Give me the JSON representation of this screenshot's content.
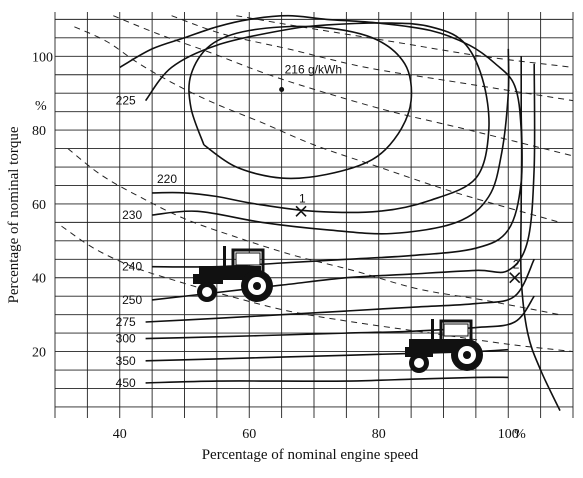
{
  "chart_data": {
    "type": "line",
    "title": "",
    "xlabel": "Percentage of nominal engine speed",
    "ylabel": "Percentage of nominal torque",
    "x_unit": "%",
    "y_unit": "%",
    "xlim": [
      30,
      110
    ],
    "ylim": [
      2,
      112
    ],
    "x_ticks": [
      40,
      60,
      80,
      100
    ],
    "y_ticks": [
      20,
      40,
      60,
      80,
      100
    ],
    "grid": true,
    "center_label": "216 g/kWh",
    "center_point": [
      65,
      91
    ],
    "isolines": [
      {
        "label": "220",
        "points": [
          [
            53,
            76
          ],
          [
            58,
            70
          ],
          [
            65,
            67
          ],
          [
            72,
            68
          ],
          [
            79,
            72
          ],
          [
            83,
            79
          ],
          [
            85,
            88
          ],
          [
            84,
            98
          ],
          [
            79,
            105
          ],
          [
            70,
            108
          ],
          [
            60,
            107
          ],
          [
            54,
            103
          ],
          [
            51,
            95
          ],
          [
            51,
            86
          ],
          [
            53,
            76
          ]
        ]
      },
      {
        "label": "225",
        "points": [
          [
            44,
            88
          ],
          [
            48,
            97
          ],
          [
            55,
            103
          ],
          [
            65,
            107
          ],
          [
            72,
            108.5
          ],
          [
            82,
            109
          ],
          [
            88,
            108
          ],
          [
            93,
            104
          ],
          [
            96,
            94
          ],
          [
            97,
            80
          ],
          [
            95,
            67
          ],
          [
            88,
            61
          ],
          [
            80,
            58
          ],
          [
            70,
            58
          ],
          [
            61,
            60
          ],
          [
            55,
            62
          ],
          [
            50,
            63
          ],
          [
            45,
            63
          ]
        ]
      },
      {
        "label": "230",
        "points": [
          [
            45,
            57
          ],
          [
            52,
            58
          ],
          [
            62,
            55
          ],
          [
            72,
            53
          ],
          [
            82,
            52
          ],
          [
            92,
            55
          ],
          [
            97,
            62
          ],
          [
            99,
            74
          ],
          [
            100,
            90
          ],
          [
            100,
            102
          ]
        ]
      },
      {
        "label": "240",
        "points": [
          [
            45,
            43
          ],
          [
            55,
            43
          ],
          [
            65,
            44
          ],
          [
            75,
            45
          ],
          [
            85,
            46
          ],
          [
            95,
            48
          ],
          [
            100,
            53
          ],
          [
            102,
            66
          ],
          [
            102,
            85
          ],
          [
            102,
            100
          ]
        ]
      },
      {
        "label": "250",
        "points": [
          [
            45,
            34
          ],
          [
            55,
            36
          ],
          [
            65,
            38
          ],
          [
            75,
            40
          ],
          [
            85,
            41
          ],
          [
            95,
            42
          ],
          [
            100,
            42
          ],
          [
            103,
            50
          ],
          [
            104,
            70
          ],
          [
            104,
            98
          ]
        ]
      },
      {
        "label": "275",
        "points": [
          [
            44,
            28
          ],
          [
            55,
            29
          ],
          [
            65,
            30
          ],
          [
            75,
            31
          ],
          [
            85,
            32
          ],
          [
            95,
            33
          ],
          [
            101,
            35
          ],
          [
            104,
            45
          ]
        ]
      },
      {
        "label": "300",
        "points": [
          [
            44,
            23.5
          ],
          [
            55,
            24
          ],
          [
            65,
            24.5
          ],
          [
            75,
            25
          ],
          [
            85,
            25.5
          ],
          [
            95,
            26.5
          ],
          [
            101,
            28
          ],
          [
            104,
            35
          ]
        ]
      },
      {
        "label": "350",
        "points": [
          [
            44,
            17.5
          ],
          [
            55,
            18
          ],
          [
            65,
            18.5
          ],
          [
            75,
            19
          ],
          [
            85,
            19.5
          ],
          [
            95,
            20
          ],
          [
            100,
            20.5
          ]
        ]
      },
      {
        "label": "450",
        "points": [
          [
            44,
            11.5
          ],
          [
            55,
            12
          ],
          [
            65,
            12
          ],
          [
            75,
            12
          ],
          [
            85,
            12.5
          ],
          [
            95,
            13
          ],
          [
            100,
            13
          ]
        ]
      }
    ],
    "full_load_curve": [
      [
        40,
        97
      ],
      [
        45,
        102
      ],
      [
        50,
        105
      ],
      [
        55,
        108
      ],
      [
        60,
        110
      ],
      [
        66,
        111
      ],
      [
        72,
        110
      ],
      [
        80,
        109
      ],
      [
        88,
        107
      ],
      [
        94,
        103
      ],
      [
        98,
        98
      ],
      [
        101,
        92
      ],
      [
        102,
        80
      ],
      [
        102,
        60
      ],
      [
        102,
        40
      ],
      [
        103,
        25
      ],
      [
        105,
        15
      ],
      [
        108,
        4
      ]
    ],
    "constant_power_dashed": [
      [
        [
          33,
          108
        ],
        [
          38,
          104
        ],
        [
          43,
          98
        ],
        [
          49,
          92
        ],
        [
          55,
          87
        ],
        [
          62,
          82
        ],
        [
          70,
          76
        ],
        [
          80,
          70
        ],
        [
          92,
          63
        ],
        [
          108,
          55
        ]
      ],
      [
        [
          39,
          111
        ],
        [
          46,
          106
        ],
        [
          54,
          101
        ],
        [
          63,
          95
        ],
        [
          72,
          90
        ],
        [
          82,
          85
        ],
        [
          94,
          80
        ],
        [
          110,
          73
        ]
      ],
      [
        [
          48,
          111
        ],
        [
          56,
          106
        ],
        [
          66,
          102
        ],
        [
          78,
          97
        ],
        [
          92,
          93
        ],
        [
          110,
          88
        ]
      ],
      [
        [
          58,
          111
        ],
        [
          68,
          108
        ],
        [
          82,
          104
        ],
        [
          96,
          100
        ],
        [
          110,
          97
        ]
      ],
      [
        [
          32,
          75
        ],
        [
          37,
          68
        ],
        [
          43,
          62
        ],
        [
          50,
          56
        ],
        [
          58,
          51
        ],
        [
          67,
          46
        ],
        [
          76,
          42
        ],
        [
          86,
          37
        ],
        [
          96,
          34
        ],
        [
          108,
          30
        ]
      ],
      [
        [
          31,
          54
        ],
        [
          36,
          48
        ],
        [
          42,
          43
        ],
        [
          49,
          39
        ],
        [
          57,
          35
        ],
        [
          66,
          31
        ],
        [
          76,
          28
        ],
        [
          88,
          25
        ],
        [
          100,
          22
        ],
        [
          110,
          20
        ]
      ]
    ],
    "operating_points": [
      {
        "label": "1",
        "x": 68,
        "y": 58
      },
      {
        "label": "2",
        "x": 101,
        "y": 40
      }
    ]
  }
}
